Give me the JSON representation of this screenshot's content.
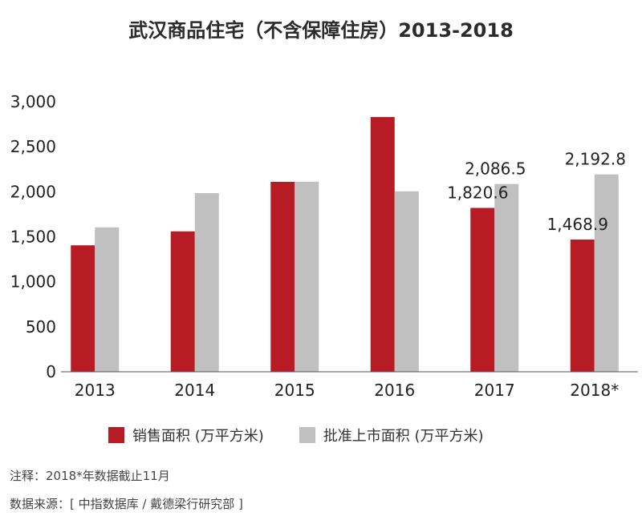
{
  "title": "武汉商品住宅（不含保障住房）2013-2018",
  "chart_data": {
    "type": "bar",
    "categories": [
      "2013",
      "2014",
      "2015",
      "2016",
      "2017",
      "2018*"
    ],
    "series": [
      {
        "name": "销售面积 (万平方米)",
        "color": "#b71c24",
        "values": [
          1405,
          1560,
          2110,
          2830,
          1820.6,
          1468.9
        ],
        "labels": [
          "",
          "",
          "",
          "",
          "1,820.6",
          "1,468.9"
        ]
      },
      {
        "name": "批准上市面积 (万平方米)",
        "color": "#c0c0c0",
        "values": [
          1605,
          1985,
          2112,
          2005,
          2086.5,
          2192.8
        ],
        "labels": [
          "",
          "",
          "",
          "",
          "2,086.5",
          "2,192.8"
        ]
      }
    ],
    "ylim": [
      0,
      3000
    ],
    "yticks": [
      0,
      500,
      1000,
      1500,
      2000,
      2500,
      3000
    ],
    "ytick_labels": [
      "0",
      "500",
      "1,000",
      "1,500",
      "2,000",
      "2,500",
      "3,000"
    ],
    "grid": false,
    "legend_position": "bottom"
  },
  "footnote": "注释：2018*年数据截止11月",
  "source": "数据来源：[ 中指数据库 / 戴德梁行研究部 ]"
}
